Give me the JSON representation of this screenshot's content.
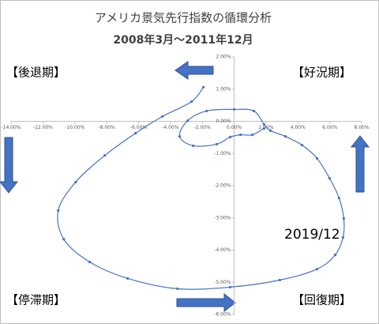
{
  "chart_data": {
    "type": "scatter",
    "title": "アメリカ景気先行指数の循環分析",
    "subtitle": "2008年3月～2011年12月",
    "annotations": [
      "【後退期】",
      "【好況期】",
      "【停滞期】",
      "【回復期】",
      "2019/12"
    ],
    "xlim": [
      -14,
      8
    ],
    "ylim": [
      -6,
      2
    ],
    "xticks": [
      {
        "value": -14,
        "label": "-14.00%"
      },
      {
        "value": -12,
        "label": "-12.00%"
      },
      {
        "value": -10,
        "label": "-10.00%"
      },
      {
        "value": -8,
        "label": "-8.00%"
      },
      {
        "value": -6,
        "label": "-6.00%"
      },
      {
        "value": -4,
        "label": "-4.00%"
      },
      {
        "value": -2,
        "label": "-2.00%"
      },
      {
        "value": 0,
        "label": "0.00%"
      },
      {
        "value": 2,
        "label": "2.00%"
      },
      {
        "value": 4,
        "label": "4.00%"
      },
      {
        "value": 6,
        "label": "6.00%"
      },
      {
        "value": 8,
        "label": "8.00%"
      }
    ],
    "yticks": [
      {
        "value": 2,
        "label": "2.00%"
      },
      {
        "value": 1,
        "label": "1.00%"
      },
      {
        "value": 0,
        "label": "0.00%"
      },
      {
        "value": -1,
        "label": "-1.00%"
      },
      {
        "value": -2,
        "label": "-2.00%"
      },
      {
        "value": -3,
        "label": "-3.00%"
      },
      {
        "value": -4,
        "label": "-4.00%"
      },
      {
        "value": -5,
        "label": "-5.00%"
      },
      {
        "value": -6,
        "label": "-6.00%"
      }
    ],
    "series": [
      {
        "color": "#4472c4",
        "x": [
          -1.93,
          -2.67,
          -4.5,
          -6.19,
          -8.12,
          -9.95,
          -11.04,
          -10.69,
          -9.06,
          -6.68,
          -3.56,
          -0.25,
          2.87,
          5.2,
          6.34,
          6.83,
          6.88,
          6.58,
          5.99,
          5.2,
          4.26,
          3.22,
          2.28,
          1.88,
          1.24,
          0,
          -1.73,
          -2.92,
          -3.42,
          -2.57,
          -1.09,
          -0.25,
          0.4,
          1.14,
          1.88
        ],
        "values": [
          1.06,
          0.61,
          0.15,
          -0.37,
          -1.06,
          -1.89,
          -2.77,
          -3.66,
          -4.37,
          -4.88,
          -5.2,
          -5.15,
          -4.93,
          -4.59,
          -4.15,
          -3.61,
          -3.02,
          -2.38,
          -1.77,
          -1.15,
          -0.74,
          -0.47,
          -0.29,
          -0.1,
          0.32,
          0.37,
          0.32,
          0.02,
          -0.47,
          -0.76,
          -0.71,
          -0.49,
          -0.42,
          -0.42,
          -0.22
        ]
      }
    ]
  }
}
